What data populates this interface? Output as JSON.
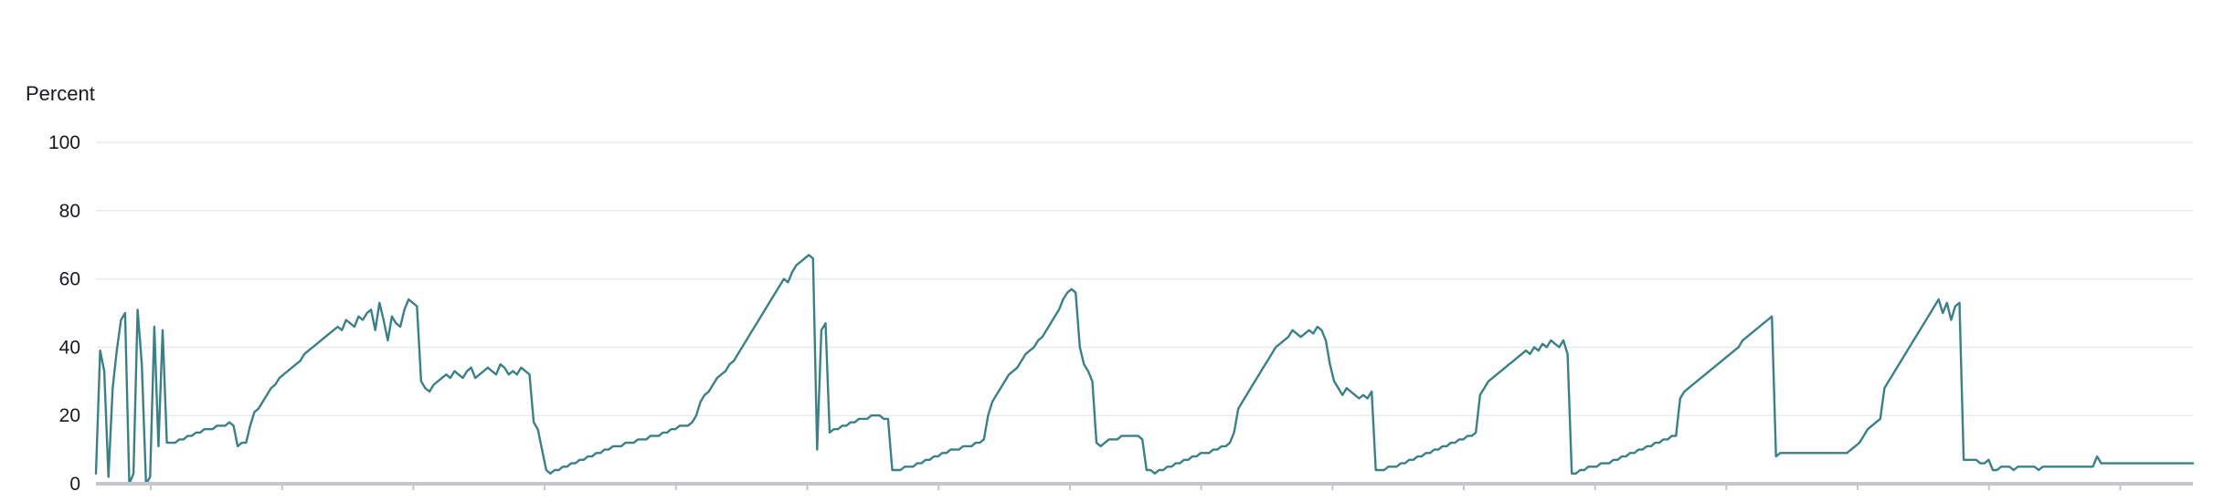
{
  "chart_data": {
    "type": "line",
    "ylabel": "Percent",
    "ylim": [
      0,
      100
    ],
    "yticks": [
      "0",
      "20",
      "40",
      "60",
      "80",
      "100"
    ],
    "grid": true,
    "legend": "none",
    "x_tick_count": 16,
    "line_color": "#3b8088",
    "series": [
      {
        "values": [
          3,
          39,
          33,
          2,
          28,
          39,
          48,
          50,
          0,
          3,
          51,
          35,
          0,
          2,
          46,
          11,
          45,
          12,
          12,
          12,
          13,
          13,
          14,
          14,
          15,
          15,
          16,
          16,
          16,
          17,
          17,
          17,
          18,
          17,
          11,
          12,
          12,
          17,
          21,
          22,
          24,
          26,
          28,
          29,
          31,
          32,
          33,
          34,
          35,
          36,
          38,
          39,
          40,
          41,
          42,
          43,
          44,
          45,
          46,
          45,
          48,
          47,
          46,
          49,
          48,
          50,
          51,
          45,
          53,
          48,
          42,
          49,
          47,
          46,
          51,
          54,
          53,
          52,
          30,
          28,
          27,
          29,
          30,
          31,
          32,
          31,
          33,
          32,
          31,
          33,
          34,
          31,
          32,
          33,
          34,
          33,
          32,
          35,
          34,
          32,
          33,
          32,
          34,
          33,
          32,
          18,
          16,
          10,
          4,
          3,
          4,
          4,
          5,
          5,
          6,
          6,
          7,
          7,
          8,
          8,
          9,
          9,
          10,
          10,
          11,
          11,
          11,
          12,
          12,
          12,
          13,
          13,
          13,
          14,
          14,
          14,
          15,
          15,
          16,
          16,
          17,
          17,
          17,
          18,
          20,
          24,
          26,
          27,
          29,
          31,
          32,
          33,
          35,
          36,
          38,
          40,
          42,
          44,
          46,
          48,
          50,
          52,
          54,
          56,
          58,
          60,
          59,
          62,
          64,
          65,
          66,
          67,
          66,
          10,
          45,
          47,
          15,
          16,
          16,
          17,
          17,
          18,
          18,
          19,
          19,
          19,
          20,
          20,
          20,
          19,
          19,
          4,
          4,
          4,
          5,
          5,
          5,
          6,
          6,
          7,
          7,
          8,
          8,
          9,
          9,
          10,
          10,
          10,
          11,
          11,
          11,
          12,
          12,
          13,
          20,
          24,
          26,
          28,
          30,
          32,
          33,
          34,
          36,
          38,
          39,
          40,
          42,
          43,
          45,
          47,
          49,
          51,
          54,
          56,
          57,
          56,
          40,
          35,
          33,
          30,
          12,
          11,
          12,
          13,
          13,
          13,
          14,
          14,
          14,
          14,
          14,
          13,
          4,
          4,
          3,
          4,
          4,
          5,
          5,
          6,
          6,
          7,
          7,
          8,
          8,
          9,
          9,
          9,
          10,
          10,
          11,
          11,
          12,
          15,
          22,
          24,
          26,
          28,
          30,
          32,
          34,
          36,
          38,
          40,
          41,
          42,
          43,
          45,
          44,
          43,
          44,
          45,
          44,
          46,
          45,
          42,
          35,
          30,
          28,
          26,
          28,
          27,
          26,
          25,
          26,
          25,
          27,
          4,
          4,
          4,
          5,
          5,
          5,
          6,
          6,
          7,
          7,
          8,
          8,
          9,
          9,
          10,
          10,
          11,
          11,
          12,
          12,
          13,
          13,
          14,
          14,
          15,
          26,
          28,
          30,
          31,
          32,
          33,
          34,
          35,
          36,
          37,
          38,
          39,
          38,
          40,
          39,
          41,
          40,
          42,
          41,
          40,
          42,
          38,
          3,
          3,
          4,
          4,
          5,
          5,
          5,
          6,
          6,
          6,
          7,
          7,
          8,
          8,
          9,
          9,
          10,
          10,
          11,
          11,
          12,
          12,
          13,
          13,
          14,
          14,
          25,
          27,
          28,
          29,
          30,
          31,
          32,
          33,
          34,
          35,
          36,
          37,
          38,
          39,
          40,
          42,
          43,
          44,
          45,
          46,
          47,
          48,
          49,
          8,
          9,
          9,
          9,
          9,
          9,
          9,
          9,
          9,
          9,
          9,
          9,
          9,
          9,
          9,
          9,
          9,
          9,
          10,
          11,
          12,
          14,
          16,
          17,
          18,
          19,
          28,
          30,
          32,
          34,
          36,
          38,
          40,
          42,
          44,
          46,
          48,
          50,
          52,
          54,
          50,
          53,
          48,
          52,
          53,
          7,
          7,
          7,
          7,
          6,
          6,
          7,
          4,
          4,
          5,
          5,
          5,
          4,
          5,
          5,
          5,
          5,
          5,
          4,
          5,
          5,
          5,
          5,
          5,
          5,
          5,
          5,
          5,
          5,
          5,
          5,
          5,
          8,
          6,
          6,
          6,
          6,
          6,
          6,
          6,
          6,
          6,
          6,
          6,
          6,
          6,
          6,
          6,
          6,
          6,
          6,
          6,
          6,
          6,
          6,
          6
        ]
      }
    ]
  }
}
